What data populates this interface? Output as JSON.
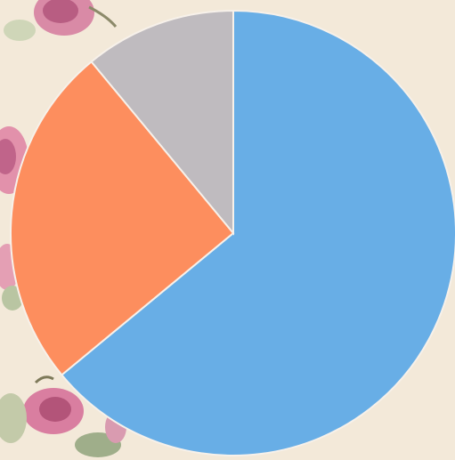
{
  "background": {
    "paper_color": "#f3e9d9",
    "motif": "rose-floral"
  },
  "chart_data": {
    "type": "pie",
    "title": "",
    "start_angle_deg": 0,
    "direction": "clockwise",
    "edge_color": "#f7f1ea",
    "slices": [
      {
        "value": 64,
        "color": "#68aee6"
      },
      {
        "value": 25,
        "color": "#fd8e5e"
      },
      {
        "value": 11,
        "color": "#bfbbbf"
      }
    ]
  }
}
